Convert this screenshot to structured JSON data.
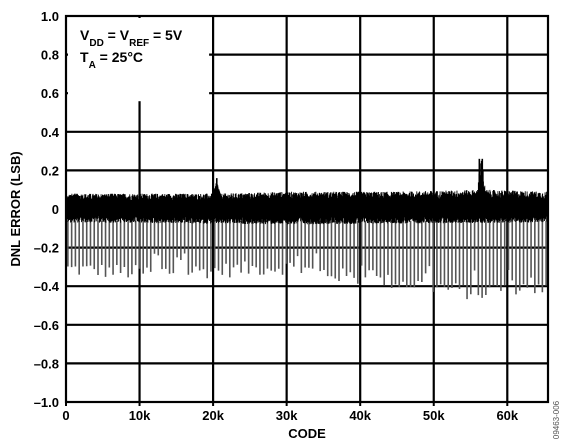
{
  "chart_data": {
    "type": "line",
    "title": "",
    "xlabel": "CODE",
    "ylabel": "DNL ERROR (LSB)",
    "xlim": [
      0,
      65535
    ],
    "ylim": [
      -1.0,
      1.0
    ],
    "grid": true,
    "x_ticks": [
      0,
      10000,
      20000,
      30000,
      40000,
      50000,
      60000
    ],
    "x_tick_labels": [
      "0",
      "10k",
      "20k",
      "30k",
      "40k",
      "50k",
      "60k"
    ],
    "y_ticks": [
      1.0,
      0.8,
      0.6,
      0.4,
      0.2,
      0,
      -0.2,
      -0.4,
      -0.6,
      -0.8,
      -1.0
    ],
    "y_tick_labels": [
      "1.0",
      "0.8",
      "0.6",
      "0.4",
      "0.2",
      "0",
      "–0.2",
      "–0.4",
      "–0.6",
      "–0.8",
      "–1.0"
    ],
    "annotation": {
      "line1": {
        "v": "V",
        "dd": "DD",
        "eq1": " = V",
        "ref": "REF",
        "eq2": " = 5V"
      },
      "line2": {
        "t": "T",
        "a": "A",
        "val": " = 25°C"
      }
    },
    "figure_id": "09463-006",
    "series": [
      {
        "upper_envelope": [
          [
            0,
            0.08
          ],
          [
            20000,
            0.08
          ],
          [
            20500,
            0.16
          ],
          [
            21000,
            0.08
          ],
          [
            30000,
            0.09
          ],
          [
            45000,
            0.09
          ],
          [
            56000,
            0.1
          ],
          [
            56200,
            0.26
          ],
          [
            56600,
            0.26
          ],
          [
            57000,
            0.1
          ],
          [
            65535,
            0.09
          ]
        ],
        "lower_envelope_dense": [
          [
            0,
            -0.07
          ],
          [
            30000,
            -0.08
          ],
          [
            65535,
            -0.07
          ]
        ],
        "spike_bottoms": [
          [
            0,
            -0.31
          ],
          [
            10000,
            -0.33
          ],
          [
            20000,
            -0.32
          ],
          [
            30000,
            -0.3
          ],
          [
            40000,
            -0.36
          ],
          [
            50000,
            -0.4
          ],
          [
            56000,
            -0.44
          ],
          [
            60000,
            -0.4
          ],
          [
            65535,
            -0.42
          ]
        ],
        "spike_period_codes": 512
      }
    ]
  }
}
